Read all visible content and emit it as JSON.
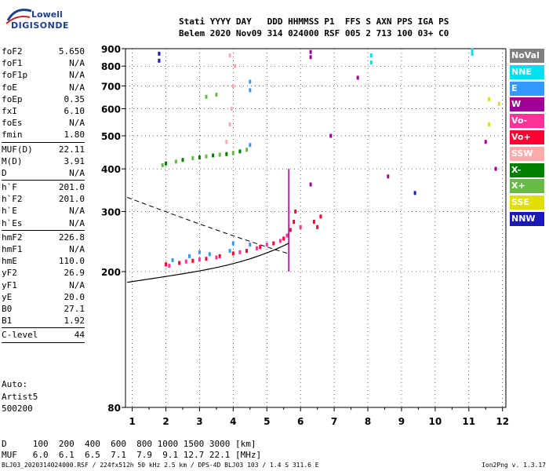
{
  "logo": {
    "line1": "Lowell",
    "line2": "DIGISONDE"
  },
  "header": {
    "line1": "Stati YYYY DAY   DDD HHMMSS P1  FFS S AXN PPS IGA PS",
    "line2": "Belem 2020 Nov09 314 024000 RSF 005 2 713 100 03+ C0"
  },
  "params": [
    {
      "label": "foF2",
      "value": "5.650"
    },
    {
      "label": "foF1",
      "value": "N/A"
    },
    {
      "label": "foF1p",
      "value": "N/A"
    },
    {
      "label": "foE",
      "value": "N/A"
    },
    {
      "label": "foEp",
      "value": "0.35"
    },
    {
      "label": "fxI",
      "value": "6.10"
    },
    {
      "label": "foEs",
      "value": "N/A"
    },
    {
      "label": "fmin",
      "value": "1.80"
    },
    {
      "sep": true
    },
    {
      "label": "MUF(D)",
      "value": "22.11"
    },
    {
      "label": "M(D)",
      "value": "3.91"
    },
    {
      "label": "D",
      "value": "N/A"
    },
    {
      "sep": true
    },
    {
      "label": "h`F",
      "value": "201.0"
    },
    {
      "label": "h`F2",
      "value": "201.0"
    },
    {
      "label": "h`E",
      "value": "N/A"
    },
    {
      "label": "h`Es",
      "value": "N/A"
    },
    {
      "sep": true
    },
    {
      "label": "hmF2",
      "value": "226.8"
    },
    {
      "label": "hmF1",
      "value": "N/A"
    },
    {
      "label": "hmE",
      "value": "110.0"
    },
    {
      "label": "yF2",
      "value": "26.9"
    },
    {
      "label": "yF1",
      "value": "N/A"
    },
    {
      "label": "yE",
      "value": "20.0"
    },
    {
      "label": "B0",
      "value": "27.1"
    },
    {
      "label": "B1",
      "value": "1.92"
    },
    {
      "sep": true
    },
    {
      "label": "C-level",
      "value": "44"
    },
    {
      "sep": true
    }
  ],
  "auto": {
    "line1": "Auto:",
    "line2": "Artist5",
    "line3": "500200"
  },
  "dmuf": {
    "d_line": "D     100  200  400  600  800 1000 1500 3000 [km]",
    "muf_line": "MUF   6.0  6.1  6.5  7.1  7.9  9.1 12.7 22.1 [MHz]"
  },
  "footer": {
    "left": "BLJ03_2020314024000.RSF / 224fx512h 50 kHz 2.5 km / DPS-4D BLJ03 103 / 1.4 S 311.6 E",
    "right": "Ion2Png v. 1.3.17"
  },
  "legend": [
    {
      "label": "NoVal",
      "color": "#808080"
    },
    {
      "label": "NNE",
      "color": "#00e0f0"
    },
    {
      "label": "E",
      "color": "#3399ff"
    },
    {
      "label": "W",
      "color": "#a0009a"
    },
    {
      "label": "Vo-",
      "color": "#ff3399"
    },
    {
      "label": "Vo+",
      "color": "#ff0033"
    },
    {
      "label": "SSW",
      "color": "#ffaaaa"
    },
    {
      "label": "X-",
      "color": "#008000"
    },
    {
      "label": "X+",
      "color": "#66bb44"
    },
    {
      "label": "SSE",
      "color": "#e0e000"
    },
    {
      "label": "NNW",
      "color": "#1a1ab0"
    }
  ],
  "chart_data": {
    "type": "scatter",
    "x_ticks": [
      1,
      2,
      3,
      4,
      5,
      6,
      7,
      8,
      9,
      10,
      11,
      12
    ],
    "y_ticks": [
      200,
      300,
      400,
      500,
      600,
      700,
      800,
      900
    ],
    "xlim": [
      0.8,
      12.1
    ],
    "ylim": [
      80,
      900
    ],
    "y_scale": "log",
    "grid": true,
    "foF2": 5.65,
    "series": [
      {
        "name": "Vo+",
        "color": "#ff0033",
        "points": [
          [
            2.0,
            210
          ],
          [
            2.4,
            212
          ],
          [
            2.8,
            215
          ],
          [
            3.2,
            218
          ],
          [
            3.6,
            222
          ],
          [
            4.0,
            226
          ],
          [
            4.4,
            230
          ],
          [
            4.8,
            236
          ],
          [
            5.2,
            242
          ],
          [
            5.5,
            250
          ],
          [
            5.7,
            265
          ],
          [
            5.8,
            280
          ],
          [
            5.85,
            300
          ],
          [
            6.4,
            280
          ],
          [
            6.5,
            270
          ],
          [
            6.6,
            290
          ]
        ]
      },
      {
        "name": "Vo-",
        "color": "#ff3399",
        "points": [
          [
            2.1,
            208
          ],
          [
            2.6,
            214
          ],
          [
            3.0,
            217
          ],
          [
            3.5,
            220
          ],
          [
            4.2,
            228
          ],
          [
            4.7,
            234
          ],
          [
            5.0,
            240
          ],
          [
            5.4,
            246
          ],
          [
            5.6,
            255
          ],
          [
            6.0,
            270
          ]
        ]
      },
      {
        "name": "E",
        "color": "#3399ff",
        "points": [
          [
            2.2,
            216
          ],
          [
            2.7,
            222
          ],
          [
            3.3,
            225
          ],
          [
            3.9,
            230
          ],
          [
            4.5,
            240
          ],
          [
            4.5,
            470
          ],
          [
            4.5,
            680
          ],
          [
            4.5,
            720
          ],
          [
            4.0,
            242
          ],
          [
            3.0,
            228
          ]
        ]
      },
      {
        "name": "X+",
        "color": "#66bb44",
        "points": [
          [
            1.9,
            410
          ],
          [
            2.3,
            420
          ],
          [
            2.8,
            430
          ],
          [
            3.2,
            435
          ],
          [
            3.6,
            440
          ],
          [
            4.0,
            445
          ],
          [
            4.4,
            455
          ],
          [
            3.2,
            650
          ],
          [
            3.5,
            660
          ]
        ]
      },
      {
        "name": "X-",
        "color": "#008000",
        "points": [
          [
            2.0,
            415
          ],
          [
            2.5,
            425
          ],
          [
            3.0,
            432
          ],
          [
            3.4,
            438
          ],
          [
            3.8,
            442
          ],
          [
            4.2,
            450
          ]
        ]
      },
      {
        "name": "SSW",
        "color": "#ffaaaa",
        "points": [
          [
            3.8,
            480
          ],
          [
            3.9,
            540
          ],
          [
            3.95,
            600
          ],
          [
            4.0,
            700
          ],
          [
            4.05,
            800
          ],
          [
            3.9,
            860
          ]
        ]
      },
      {
        "name": "W",
        "color": "#a0009a",
        "points": [
          [
            6.3,
            850
          ],
          [
            6.3,
            880
          ],
          [
            6.9,
            500
          ],
          [
            7.7,
            740
          ],
          [
            8.6,
            380
          ],
          [
            11.5,
            480
          ],
          [
            11.8,
            400
          ],
          [
            6.3,
            360
          ]
        ]
      },
      {
        "name": "NNE",
        "color": "#00e0f0",
        "points": [
          [
            11.1,
            870
          ],
          [
            11.1,
            890
          ],
          [
            8.1,
            860
          ],
          [
            8.1,
            820
          ]
        ]
      },
      {
        "name": "NNW",
        "color": "#1a1ab0",
        "points": [
          [
            1.8,
            870
          ],
          [
            1.8,
            830
          ],
          [
            9.4,
            340
          ]
        ]
      },
      {
        "name": "SSE",
        "color": "#e0e000",
        "points": [
          [
            11.6,
            640
          ],
          [
            11.6,
            540
          ],
          [
            11.9,
            620
          ]
        ]
      }
    ]
  }
}
